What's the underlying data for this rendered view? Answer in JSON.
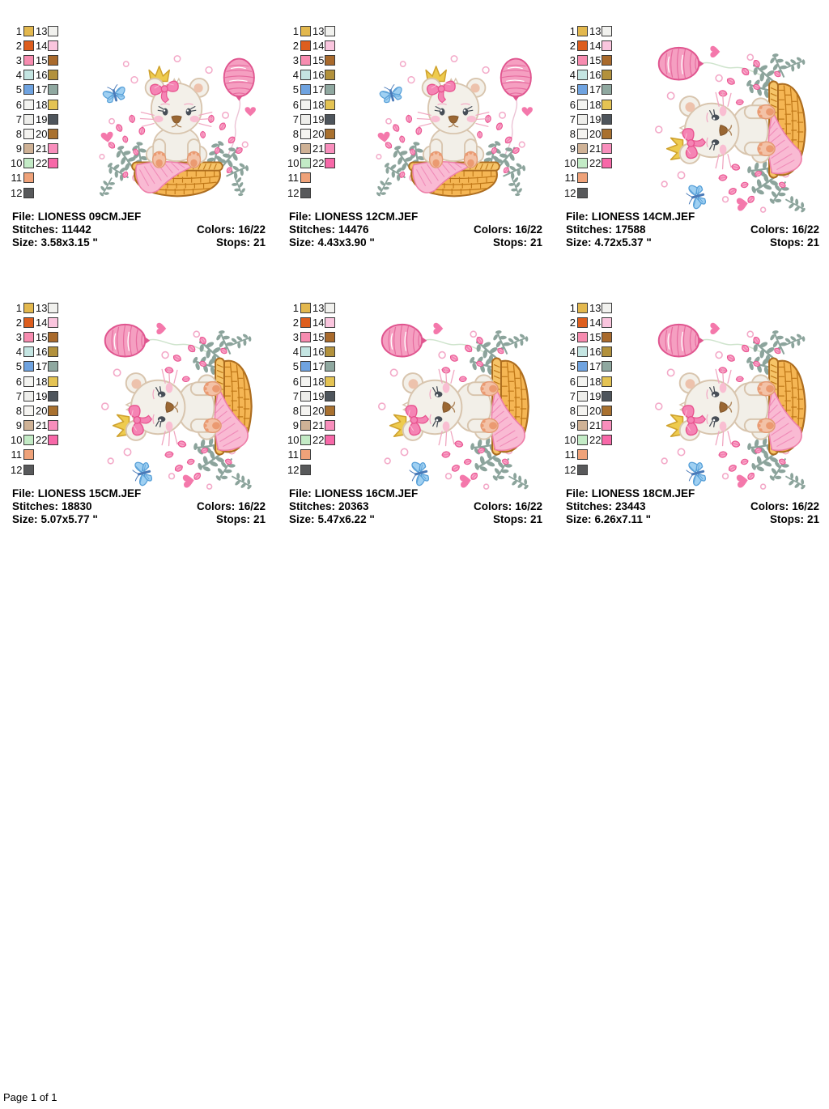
{
  "page": {
    "footer": "Page 1 of 1"
  },
  "labels": {
    "file": "File:",
    "stitches": "Stitches:",
    "size": "Size:",
    "colors": "Colors:",
    "stops": "Stops:"
  },
  "palette": [
    {
      "index": 1,
      "color": "#e3b84e"
    },
    {
      "index": 2,
      "color": "#dd5e1e"
    },
    {
      "index": 3,
      "color": "#f78cb0"
    },
    {
      "index": 4,
      "color": "#c4e5e2"
    },
    {
      "index": 5,
      "color": "#6fa3e0"
    },
    {
      "index": 6,
      "color": "#f4f4f1"
    },
    {
      "index": 7,
      "color": "#eeeeeb"
    },
    {
      "index": 8,
      "color": "#f5f4f1"
    },
    {
      "index": 9,
      "color": "#cfb296"
    },
    {
      "index": 10,
      "color": "#c3ebc6"
    },
    {
      "index": 11,
      "color": "#efa279"
    },
    {
      "index": 12,
      "color": "#58595b"
    },
    {
      "index": 13,
      "color": "#f1f1ee"
    },
    {
      "index": 14,
      "color": "#fac5de"
    },
    {
      "index": 15,
      "color": "#a96a2c"
    },
    {
      "index": 16,
      "color": "#b2913c"
    },
    {
      "index": 17,
      "color": "#8fa8a0"
    },
    {
      "index": 18,
      "color": "#e4c353"
    },
    {
      "index": 19,
      "color": "#4e555c"
    },
    {
      "index": 20,
      "color": "#a9712f"
    },
    {
      "index": 21,
      "color": "#f88ebc"
    },
    {
      "index": 22,
      "color": "#f768a8"
    }
  ],
  "panels": [
    {
      "file": "LIONESS 09CM.JEF",
      "stitches": "11442",
      "size": "3.58x3.15 \"",
      "colors": "16/22",
      "stops": "21",
      "rotated": false
    },
    {
      "file": "LIONESS 12CM.JEF",
      "stitches": "14476",
      "size": "4.43x3.90 \"",
      "colors": "16/22",
      "stops": "21",
      "rotated": false
    },
    {
      "file": "LIONESS 14CM.JEF",
      "stitches": "17588",
      "size": "4.72x5.37 \"",
      "colors": "16/22",
      "stops": "21",
      "rotated": true
    },
    {
      "file": "LIONESS 15CM.JEF",
      "stitches": "18830",
      "size": "5.07x5.77 \"",
      "colors": "16/22",
      "stops": "21",
      "rotated": true
    },
    {
      "file": "LIONESS 16CM.JEF",
      "stitches": "20363",
      "size": "5.47x6.22 \"",
      "colors": "16/22",
      "stops": "21",
      "rotated": true
    },
    {
      "file": "LIONESS 18CM.JEF",
      "stitches": "23443",
      "size": "6.26x7.11 \"",
      "colors": "16/22",
      "stops": "21",
      "rotated": true
    }
  ],
  "artwork": {
    "subject": "Lioness cub with bow and crown sitting on a pink blanket in a wicker basket, with pink balloon, blue butterfly, tulips, foliage and hearts",
    "key_colors": {
      "balloon": "#f59fc1",
      "bow": "#f584b4",
      "basket": "#f5b654",
      "foliage": "#8ca49c",
      "butterfly": "#9fd0f2",
      "body": "#f2efe8",
      "paw_pads": "#f3c2a7",
      "hearts": "#f478ab"
    }
  }
}
